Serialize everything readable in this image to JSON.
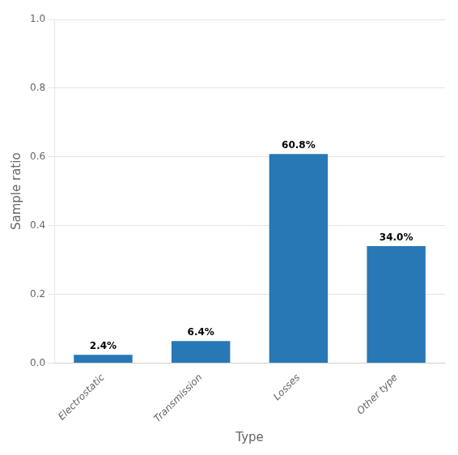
{
  "chart_data": {
    "type": "bar",
    "categories": [
      "Electrostatic",
      "Transmission",
      "Losses",
      "Other type"
    ],
    "values": [
      0.024,
      0.064,
      0.608,
      0.34
    ],
    "value_labels": [
      "2.4%",
      "6.4%",
      "60.8%",
      "34.0%"
    ],
    "data_labels": true,
    "color": "#2878b5",
    "xlabel": "Type",
    "ylabel": "Sample ratio",
    "ylim": [
      0,
      1.0
    ],
    "yticks": [
      {
        "value": 0.0,
        "label": "0.0"
      },
      0.2,
      0.4,
      0.6,
      0.8,
      {
        "value": 1.0,
        "label": "1.0"
      }
    ],
    "grid": true
  }
}
